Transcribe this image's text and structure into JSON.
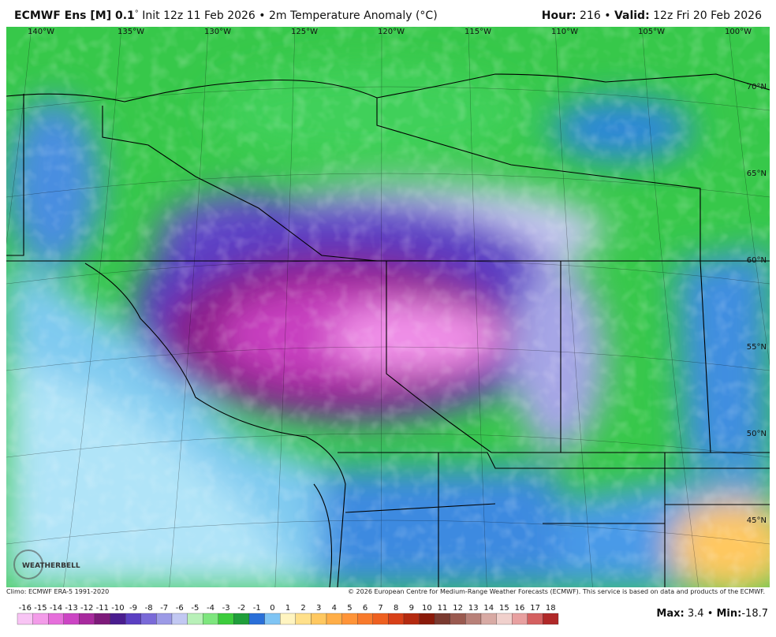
{
  "header": {
    "model": "ECMWF Ens [M] 0.1",
    "degree": "°",
    "title": "Init 12z 11 Feb 2026 • 2m Temperature Anomaly (°C)",
    "hour_label": "Hour:",
    "hour": "216",
    "separator": "•",
    "valid_label": "Valid:",
    "valid": "12z Fri 20 Feb 2026"
  },
  "map": {
    "longitudes": [
      "140°W",
      "135°W",
      "130°W",
      "125°W",
      "120°W",
      "115°W",
      "110°W",
      "105°W",
      "100°W"
    ],
    "latitudes": [
      "70°N",
      "65°N",
      "60°N",
      "55°N",
      "50°N",
      "45°N"
    ],
    "logo": "WEATHERBELL"
  },
  "footer": {
    "climo": "Climo: ECMWF ERA-5 1991-2020",
    "copyright": "© 2026 European Centre for Medium-Range Weather Forecasts (ECMWF). This service is based on data and products of the ECMWF."
  },
  "colorbar": {
    "values": [
      -16,
      -15,
      -14,
      -13,
      -12,
      -11,
      -10,
      -9,
      -8,
      -7,
      -6,
      -5,
      -4,
      -3,
      -2,
      -1,
      0,
      1,
      2,
      3,
      4,
      5,
      6,
      7,
      8,
      9,
      10,
      11,
      12,
      13,
      14,
      15,
      16,
      17,
      18
    ],
    "colors": [
      "#f8c4f4",
      "#f39ce9",
      "#e66fdb",
      "#cc45c4",
      "#a82a9e",
      "#7d1a7a",
      "#4a1d8e",
      "#5b3fc2",
      "#7a6ad8",
      "#9c9ae6",
      "#c2c8f2",
      "#b8f0b8",
      "#7ee67e",
      "#3ccc3c",
      "#1f9e3a",
      "#2a6fd8",
      "#7fc4f4",
      "#fff4c0",
      "#ffe08a",
      "#ffc860",
      "#ffae48",
      "#ff9438",
      "#f87a2c",
      "#ee6020",
      "#d84018",
      "#b42a10",
      "#8a1a0a",
      "#7a3a30",
      "#9a5a50",
      "#b88078",
      "#d8aaa4",
      "#f0d0cc",
      "#e8a0a0",
      "#d46060",
      "#b02828"
    ]
  },
  "stats": {
    "max_label": "Max:",
    "max": "3.4",
    "separator": "•",
    "min_label": "Min:",
    "min": "-18.7"
  }
}
